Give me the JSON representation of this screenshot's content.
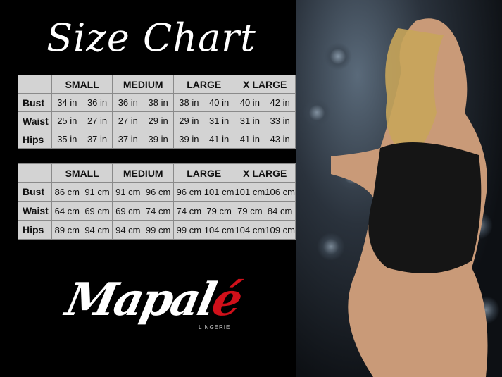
{
  "title": "Size Chart",
  "sizes": [
    "SMALL",
    "MEDIUM",
    "LARGE",
    "X LARGE"
  ],
  "inches": {
    "rows": [
      {
        "label": "Bust",
        "values": [
          "34 in",
          "36 in",
          "36 in",
          "38 in",
          "38 in",
          "40 in",
          "40 in",
          "42 in"
        ]
      },
      {
        "label": "Waist",
        "values": [
          "25 in",
          "27 in",
          "27 in",
          "29 in",
          "29 in",
          "31 in",
          "31 in",
          "33 in"
        ]
      },
      {
        "label": "Hips",
        "values": [
          "35 in",
          "37 in",
          "37 in",
          "39 in",
          "39 in",
          "41 in",
          "41 in",
          "43 in"
        ]
      }
    ]
  },
  "cm": {
    "rows": [
      {
        "label": "Bust",
        "values": [
          "86 cm",
          "91 cm",
          "91 cm",
          "96 cm",
          "96 cm",
          "101 cm",
          "101 cm",
          "106 cm"
        ]
      },
      {
        "label": "Waist",
        "values": [
          "64 cm",
          "69 cm",
          "69 cm",
          "74 cm",
          "74 cm",
          "79 cm",
          "79 cm",
          "84 cm"
        ]
      },
      {
        "label": "Hips",
        "values": [
          "89 cm",
          "94 cm",
          "94 cm",
          "99 cm",
          "99 cm",
          "104 cm",
          "104 cm",
          "109 cm"
        ]
      }
    ]
  },
  "logo": {
    "brand_main": "Mapal",
    "brand_accent": "é",
    "tagline": "LINGERIE",
    "accent_color": "#d0101a"
  }
}
